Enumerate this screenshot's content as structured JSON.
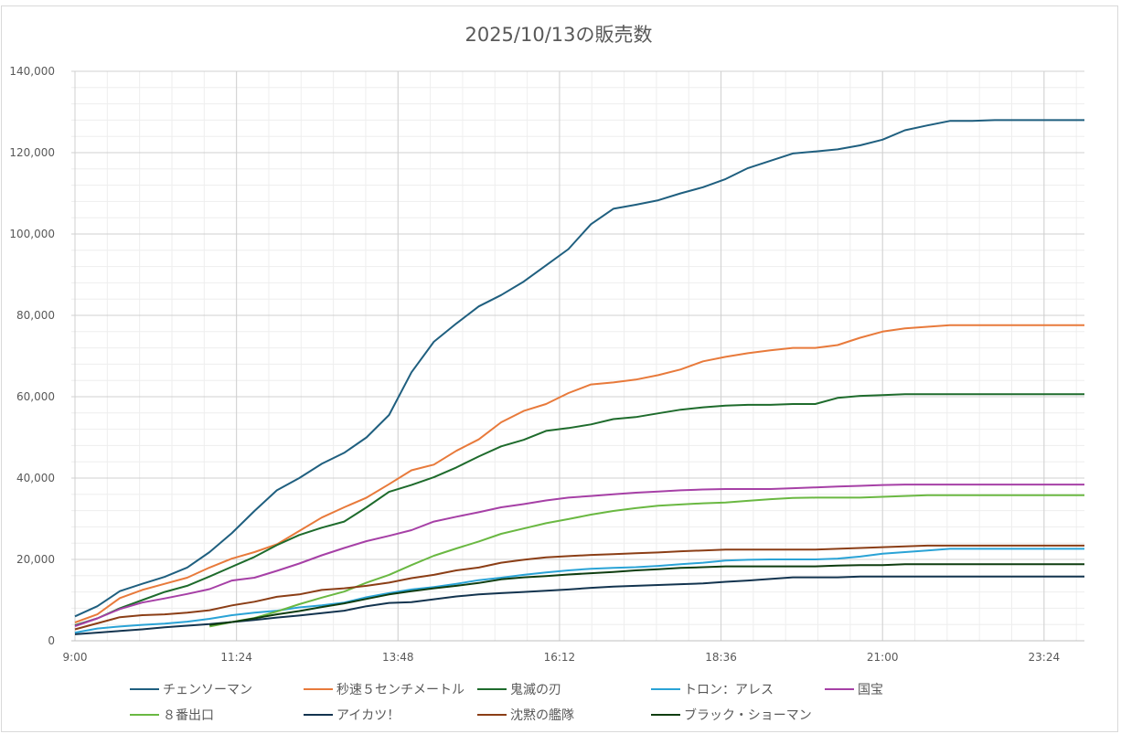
{
  "chart_data": {
    "type": "line",
    "title": "2025/10/13の販売数",
    "xlabel": "",
    "ylabel": "",
    "ylim": [
      0,
      140000
    ],
    "y_ticks": [
      "0",
      "20,000",
      "40,000",
      "60,000",
      "80,000",
      "100,000",
      "120,000",
      "140,000"
    ],
    "x_ticks": [
      "9:00",
      "11:24",
      "13:48",
      "16:12",
      "18:36",
      "21:00",
      "23:24"
    ],
    "x_range_hours": [
      9,
      24
    ],
    "grid": true,
    "legend_position": "bottom",
    "series": [
      {
        "name": "チェンソーマン",
        "color": "#1f5f7f",
        "x": [
          9.0,
          9.333,
          9.667,
          10.0,
          10.333,
          10.667,
          11.0,
          11.333,
          11.667,
          12.0,
          12.333,
          12.667,
          13.0,
          13.333,
          13.667,
          14.0,
          14.333,
          14.667,
          15.0,
          15.333,
          15.667,
          16.0,
          16.333,
          16.667,
          17.0,
          17.333,
          17.667,
          18.0,
          18.333,
          18.667,
          19.0,
          19.333,
          19.667,
          20.0,
          20.333,
          20.667,
          21.0,
          21.333,
          21.667,
          22.0,
          22.333,
          22.667,
          23.0,
          23.333,
          23.667,
          24.0
        ],
        "values": [
          6000,
          8500,
          12200,
          14000,
          15700,
          18000,
          21800,
          26500,
          31900,
          37000,
          40000,
          43500,
          46200,
          50000,
          55500,
          66000,
          73500,
          78000,
          82200,
          85000,
          88300,
          92300,
          96300,
          102400,
          106200,
          107200,
          108300,
          110000,
          111500,
          113500,
          116200,
          118000,
          119800,
          120300,
          120800,
          121800,
          123200,
          125500,
          126700,
          127800,
          127800,
          128000,
          128000,
          128000,
          128000,
          128000
        ]
      },
      {
        "name": "秒速５センチメートル",
        "color": "#e87a3b",
        "x": [
          9.0,
          9.333,
          9.667,
          10.0,
          10.333,
          10.667,
          11.0,
          11.333,
          11.667,
          12.0,
          12.333,
          12.667,
          13.0,
          13.333,
          13.667,
          14.0,
          14.333,
          14.667,
          15.0,
          15.333,
          15.667,
          16.0,
          16.333,
          16.667,
          17.0,
          17.333,
          17.667,
          18.0,
          18.333,
          18.667,
          19.0,
          19.333,
          19.667,
          20.0,
          20.333,
          20.667,
          21.0,
          21.333,
          21.667,
          22.0,
          22.333,
          22.667,
          23.0,
          23.333,
          23.667,
          24.0
        ],
        "values": [
          4500,
          6500,
          10500,
          12500,
          14000,
          15500,
          18000,
          20200,
          21800,
          23700,
          27000,
          30300,
          32800,
          35200,
          38500,
          41900,
          43300,
          46700,
          49500,
          53700,
          56500,
          58200,
          60900,
          63000,
          63500,
          64200,
          65300,
          66700,
          68700,
          69800,
          70700,
          71400,
          72000,
          72000,
          72700,
          74500,
          76000,
          76800,
          77200,
          77600,
          77600,
          77600,
          77600,
          77600,
          77600,
          77600
        ]
      },
      {
        "name": "鬼滅の刃",
        "color": "#1e6b2c",
        "x": [
          9.0,
          9.333,
          9.667,
          10.0,
          10.333,
          10.667,
          11.0,
          11.333,
          11.667,
          12.0,
          12.333,
          12.667,
          13.0,
          13.333,
          13.667,
          14.0,
          14.333,
          14.667,
          15.0,
          15.333,
          15.667,
          16.0,
          16.333,
          16.667,
          17.0,
          17.333,
          17.667,
          18.0,
          18.333,
          18.667,
          19.0,
          19.333,
          19.667,
          20.0,
          20.333,
          20.667,
          21.0,
          21.333,
          21.667,
          22.0,
          22.333,
          22.667,
          23.0,
          23.333,
          23.667,
          24.0
        ],
        "values": [
          3800,
          5500,
          8000,
          10000,
          12000,
          13500,
          15800,
          18200,
          20600,
          23500,
          26000,
          27800,
          29300,
          32800,
          36600,
          38300,
          40200,
          42600,
          45300,
          47800,
          49400,
          51600,
          52300,
          53200,
          54500,
          55000,
          55900,
          56800,
          57400,
          57800,
          58000,
          58000,
          58200,
          58200,
          59700,
          60200,
          60400,
          60600,
          60600,
          60600,
          60600,
          60600,
          60600,
          60600,
          60600,
          60600
        ]
      },
      {
        "name": "トロン：アレス",
        "color": "#2aa3d6",
        "x": [
          9.0,
          9.333,
          9.667,
          10.0,
          10.333,
          10.667,
          11.0,
          11.333,
          11.667,
          12.0,
          12.333,
          12.667,
          13.0,
          13.333,
          13.667,
          14.0,
          14.333,
          14.667,
          15.0,
          15.333,
          15.667,
          16.0,
          16.333,
          16.667,
          17.0,
          17.333,
          17.667,
          18.0,
          18.333,
          18.667,
          19.0,
          19.333,
          19.667,
          20.0,
          20.333,
          20.667,
          21.0,
          21.333,
          21.667,
          22.0,
          22.333,
          22.667,
          23.0,
          23.333,
          23.667,
          24.0
        ],
        "values": [
          2000,
          3000,
          3500,
          3900,
          4200,
          4700,
          5400,
          6300,
          6900,
          7400,
          8200,
          8700,
          9400,
          10700,
          11700,
          12600,
          13200,
          14000,
          14900,
          15500,
          16200,
          16800,
          17300,
          17700,
          17900,
          18100,
          18400,
          18800,
          19200,
          19700,
          19900,
          20000,
          20000,
          20000,
          20200,
          20700,
          21400,
          21800,
          22200,
          22600,
          22600,
          22600,
          22600,
          22600,
          22600,
          22600
        ]
      },
      {
        "name": "国宝",
        "color": "#a640a6",
        "x": [
          9.0,
          9.333,
          9.667,
          10.0,
          10.333,
          10.667,
          11.0,
          11.333,
          11.667,
          12.0,
          12.333,
          12.667,
          13.0,
          13.333,
          13.667,
          14.0,
          14.333,
          14.667,
          15.0,
          15.333,
          15.667,
          16.0,
          16.333,
          16.667,
          17.0,
          17.333,
          17.667,
          18.0,
          18.333,
          18.667,
          19.0,
          19.333,
          19.667,
          20.0,
          20.333,
          20.667,
          21.0,
          21.333,
          21.667,
          22.0,
          22.333,
          22.667,
          23.0,
          23.333,
          23.667,
          24.0
        ],
        "values": [
          3600,
          5500,
          7800,
          9400,
          10400,
          11500,
          12700,
          14800,
          15500,
          17200,
          19000,
          21000,
          22800,
          24500,
          25800,
          27200,
          29300,
          30500,
          31600,
          32800,
          33600,
          34500,
          35200,
          35600,
          36000,
          36400,
          36700,
          37000,
          37200,
          37300,
          37300,
          37300,
          37500,
          37700,
          37900,
          38100,
          38300,
          38400,
          38400,
          38400,
          38400,
          38400,
          38400,
          38400,
          38400,
          38400
        ]
      },
      {
        "name": "８番出口",
        "color": "#6ab842",
        "x": [
          11.0,
          11.333,
          11.667,
          12.0,
          12.333,
          12.667,
          13.0,
          13.333,
          13.667,
          14.0,
          14.333,
          14.667,
          15.0,
          15.333,
          15.667,
          16.0,
          16.333,
          16.667,
          17.0,
          17.333,
          17.667,
          18.0,
          18.333,
          18.667,
          19.0,
          19.333,
          19.667,
          20.0,
          20.333,
          20.667,
          21.0,
          21.333,
          21.667,
          22.0,
          22.333,
          22.667,
          23.0,
          23.333,
          23.667,
          24.0
        ],
        "values": [
          3500,
          4600,
          5600,
          7200,
          9000,
          10600,
          12100,
          14300,
          16200,
          18600,
          20900,
          22700,
          24400,
          26300,
          27600,
          28900,
          29900,
          31000,
          31900,
          32600,
          33200,
          33500,
          33800,
          34000,
          34400,
          34800,
          35100,
          35200,
          35200,
          35200,
          35400,
          35600,
          35800,
          35800,
          35800,
          35800,
          35800,
          35800,
          35800,
          35800
        ]
      },
      {
        "name": "アイカツ！",
        "color": "#13344f",
        "x": [
          9.0,
          9.333,
          9.667,
          10.0,
          10.333,
          10.667,
          11.0,
          11.333,
          11.667,
          12.0,
          12.333,
          12.667,
          13.0,
          13.333,
          13.667,
          14.0,
          14.333,
          14.667,
          15.0,
          15.333,
          15.667,
          16.0,
          16.333,
          16.667,
          17.0,
          17.333,
          17.667,
          18.0,
          18.333,
          18.667,
          19.0,
          19.333,
          19.667,
          20.0,
          20.333,
          20.667,
          21.0,
          21.333,
          21.667,
          22.0,
          22.333,
          22.667,
          23.0,
          23.333,
          23.667,
          24.0
        ],
        "values": [
          1600,
          2000,
          2400,
          2800,
          3300,
          3700,
          4100,
          4600,
          5100,
          5700,
          6200,
          6800,
          7400,
          8500,
          9300,
          9500,
          10200,
          10900,
          11400,
          11700,
          12000,
          12300,
          12600,
          13000,
          13300,
          13500,
          13700,
          13900,
          14100,
          14500,
          14800,
          15200,
          15600,
          15600,
          15600,
          15800,
          15800,
          15800,
          15800,
          15800,
          15800,
          15800,
          15800,
          15800,
          15800,
          15800
        ]
      },
      {
        "name": "沈黙の艦隊",
        "color": "#8b3e16",
        "x": [
          9.0,
          9.333,
          9.667,
          10.0,
          10.333,
          10.667,
          11.0,
          11.333,
          11.667,
          12.0,
          12.333,
          12.667,
          13.0,
          13.333,
          13.667,
          14.0,
          14.333,
          14.667,
          15.0,
          15.333,
          15.667,
          16.0,
          16.333,
          16.667,
          17.0,
          17.333,
          17.667,
          18.0,
          18.333,
          18.667,
          19.0,
          19.333,
          19.667,
          20.0,
          20.333,
          20.667,
          21.0,
          21.333,
          21.667,
          22.0,
          22.333,
          22.667,
          23.0,
          23.333,
          23.667,
          24.0
        ],
        "values": [
          2800,
          4300,
          5800,
          6300,
          6500,
          6900,
          7500,
          8700,
          9600,
          10800,
          11400,
          12500,
          12900,
          13500,
          14300,
          15400,
          16200,
          17300,
          18000,
          19200,
          19900,
          20500,
          20800,
          21100,
          21300,
          21500,
          21700,
          22000,
          22200,
          22400,
          22400,
          22400,
          22400,
          22400,
          22600,
          22800,
          23000,
          23200,
          23400,
          23400,
          23400,
          23400,
          23400,
          23400,
          23400,
          23400
        ]
      },
      {
        "name": "ブラック・ショーマン",
        "color": "#0f3d10",
        "x": [
          11.0,
          11.333,
          11.667,
          12.0,
          12.333,
          12.667,
          13.0,
          13.333,
          13.667,
          14.0,
          14.333,
          14.667,
          15.0,
          15.333,
          15.667,
          16.0,
          16.333,
          16.667,
          17.0,
          17.333,
          17.667,
          18.0,
          18.333,
          18.667,
          19.0,
          19.333,
          19.667,
          20.0,
          20.333,
          20.667,
          21.0,
          21.333,
          21.667,
          22.0,
          22.333,
          22.667,
          23.0,
          23.333,
          23.667,
          24.0
        ],
        "values": [
          3900,
          4600,
          5500,
          6500,
          7300,
          8300,
          9200,
          10300,
          11400,
          12200,
          12900,
          13500,
          14200,
          15100,
          15600,
          15900,
          16300,
          16600,
          16900,
          17300,
          17600,
          17900,
          18100,
          18300,
          18300,
          18300,
          18300,
          18300,
          18500,
          18600,
          18600,
          18800,
          18800,
          18800,
          18800,
          18800,
          18800,
          18800,
          18800,
          18800
        ]
      }
    ]
  }
}
